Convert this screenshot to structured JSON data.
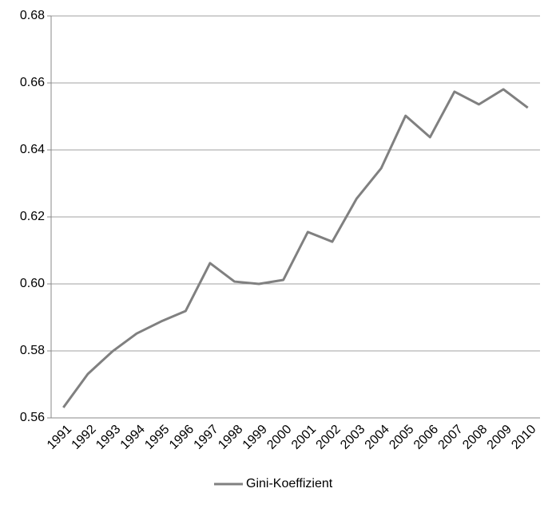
{
  "chart_data": {
    "type": "line",
    "categories": [
      "1991",
      "1992",
      "1993",
      "1994",
      "1995",
      "1996",
      "1997",
      "1998",
      "1999",
      "2000",
      "2001",
      "2002",
      "2003",
      "2004",
      "2005",
      "2006",
      "2007",
      "2008",
      "2009",
      "2010"
    ],
    "series": [
      {
        "name": "Gini-Koeffizient",
        "color": "#808080",
        "values": [
          0.5631,
          0.5731,
          0.5798,
          0.5852,
          0.5888,
          0.5919,
          0.6062,
          0.6007,
          0.6,
          0.6012,
          0.6155,
          0.6126,
          0.6255,
          0.6345,
          0.6502,
          0.6438,
          0.6574,
          0.6536,
          0.6581,
          0.6526
        ]
      }
    ],
    "ylim": [
      0.56,
      0.68
    ],
    "yticks": [
      0.56,
      0.58,
      {
        "value": 0.6,
        "label": "0.60"
      },
      0.62,
      0.64,
      0.66,
      0.68
    ],
    "grid": true,
    "legend": "bottom"
  }
}
